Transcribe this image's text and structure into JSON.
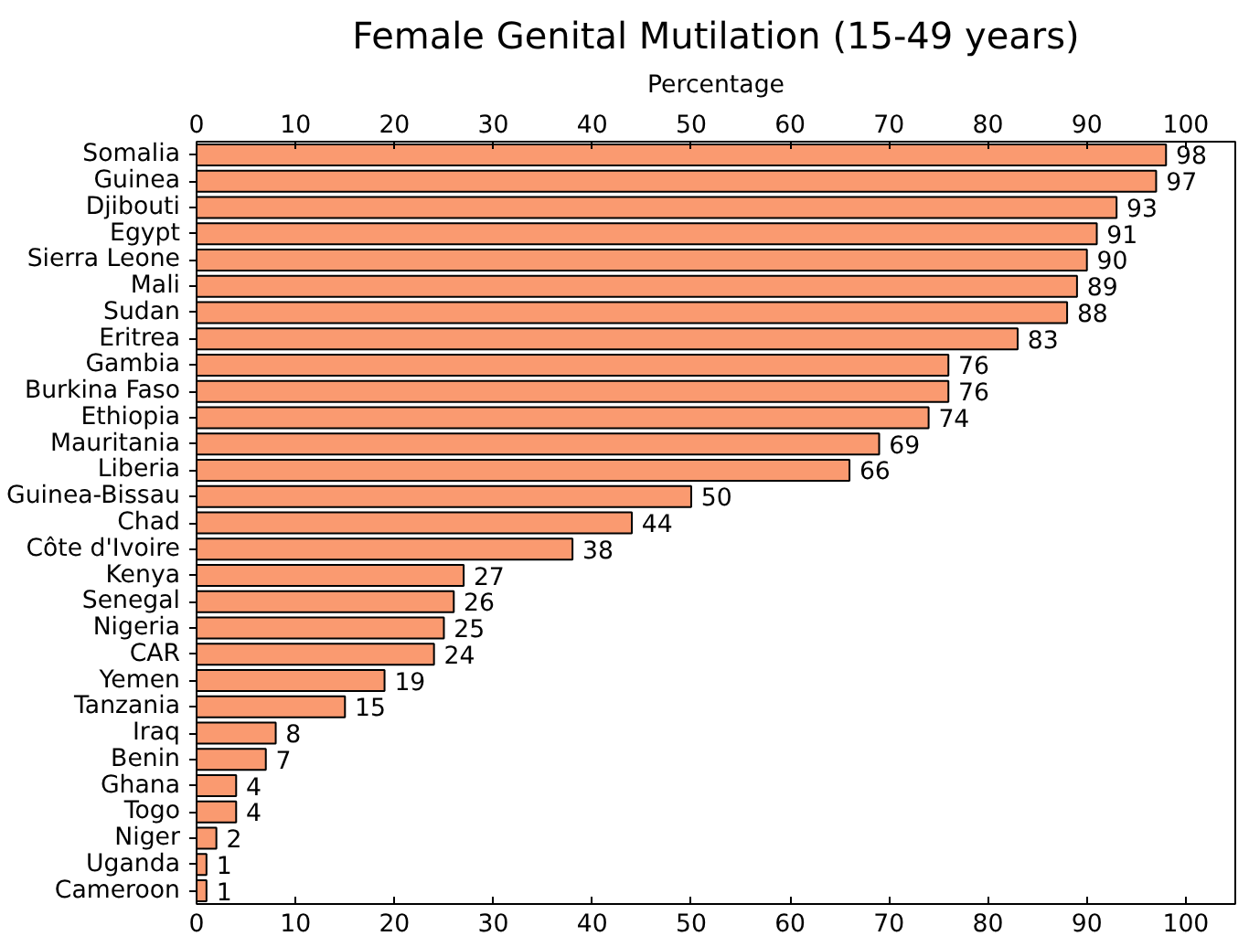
{
  "chart_data": {
    "type": "bar",
    "orientation": "horizontal",
    "title": "Female Genital Mutilation (15-49 years)",
    "x2label": "Percentage",
    "categories": [
      "Somalia",
      "Guinea",
      "Djibouti",
      "Egypt",
      "Sierra Leone",
      "Mali",
      "Sudan",
      "Eritrea",
      "Gambia",
      "Burkina Faso",
      "Ethiopia",
      "Mauritania",
      "Liberia",
      "Guinea-Bissau",
      "Chad",
      "Côte d'Ivoire",
      "Kenya",
      "Senegal",
      "Nigeria",
      "CAR",
      "Yemen",
      "Tanzania",
      "Iraq",
      "Benin",
      "Ghana",
      "Togo",
      "Niger",
      "Uganda",
      "Cameroon"
    ],
    "values": [
      98,
      97,
      93,
      91,
      90,
      89,
      88,
      83,
      76,
      76,
      74,
      69,
      66,
      50,
      44,
      38,
      27,
      26,
      25,
      24,
      19,
      15,
      8,
      7,
      4,
      4,
      2,
      1,
      1
    ],
    "color": "#fa9a70",
    "data_labels": true,
    "xlim": [
      0,
      105
    ],
    "xticks": [
      0,
      10,
      20,
      30,
      40,
      50,
      60,
      70,
      80,
      90,
      100
    ],
    "x2lim": [
      0,
      105
    ],
    "x2ticks": [
      0,
      10,
      20,
      30,
      40,
      50,
      60,
      70,
      80,
      90,
      100
    ],
    "grid": false
  }
}
